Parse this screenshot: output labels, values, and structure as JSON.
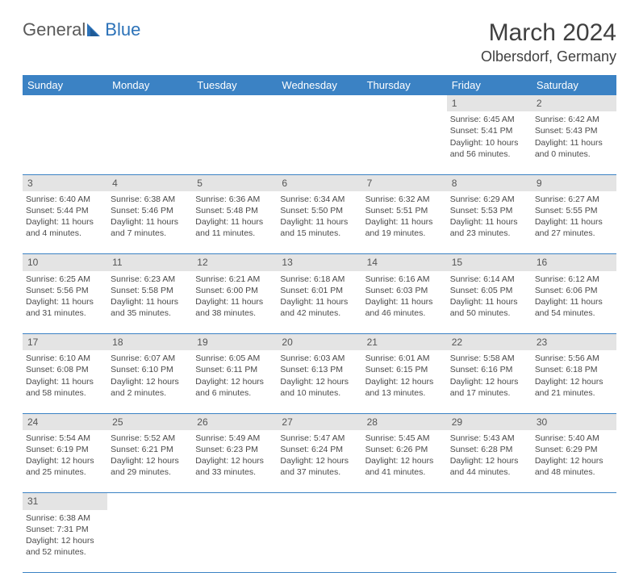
{
  "brand": {
    "part1": "General",
    "part2": "Blue"
  },
  "title": "March 2024",
  "location": "Olbersdorf, Germany",
  "colors": {
    "header_bg": "#3b82c4",
    "header_text": "#ffffff",
    "daynum_bg": "#e4e4e4",
    "cell_border": "#3b82c4",
    "body_text": "#4a4a4a",
    "logo_gray": "#5a5a5a",
    "logo_blue": "#2c72b8"
  },
  "day_headers": [
    "Sunday",
    "Monday",
    "Tuesday",
    "Wednesday",
    "Thursday",
    "Friday",
    "Saturday"
  ],
  "weeks": [
    [
      null,
      null,
      null,
      null,
      null,
      {
        "n": "1",
        "sr": "6:45 AM",
        "ss": "5:41 PM",
        "dl": "10 hours and 56 minutes."
      },
      {
        "n": "2",
        "sr": "6:42 AM",
        "ss": "5:43 PM",
        "dl": "11 hours and 0 minutes."
      }
    ],
    [
      {
        "n": "3",
        "sr": "6:40 AM",
        "ss": "5:44 PM",
        "dl": "11 hours and 4 minutes."
      },
      {
        "n": "4",
        "sr": "6:38 AM",
        "ss": "5:46 PM",
        "dl": "11 hours and 7 minutes."
      },
      {
        "n": "5",
        "sr": "6:36 AM",
        "ss": "5:48 PM",
        "dl": "11 hours and 11 minutes."
      },
      {
        "n": "6",
        "sr": "6:34 AM",
        "ss": "5:50 PM",
        "dl": "11 hours and 15 minutes."
      },
      {
        "n": "7",
        "sr": "6:32 AM",
        "ss": "5:51 PM",
        "dl": "11 hours and 19 minutes."
      },
      {
        "n": "8",
        "sr": "6:29 AM",
        "ss": "5:53 PM",
        "dl": "11 hours and 23 minutes."
      },
      {
        "n": "9",
        "sr": "6:27 AM",
        "ss": "5:55 PM",
        "dl": "11 hours and 27 minutes."
      }
    ],
    [
      {
        "n": "10",
        "sr": "6:25 AM",
        "ss": "5:56 PM",
        "dl": "11 hours and 31 minutes."
      },
      {
        "n": "11",
        "sr": "6:23 AM",
        "ss": "5:58 PM",
        "dl": "11 hours and 35 minutes."
      },
      {
        "n": "12",
        "sr": "6:21 AM",
        "ss": "6:00 PM",
        "dl": "11 hours and 38 minutes."
      },
      {
        "n": "13",
        "sr": "6:18 AM",
        "ss": "6:01 PM",
        "dl": "11 hours and 42 minutes."
      },
      {
        "n": "14",
        "sr": "6:16 AM",
        "ss": "6:03 PM",
        "dl": "11 hours and 46 minutes."
      },
      {
        "n": "15",
        "sr": "6:14 AM",
        "ss": "6:05 PM",
        "dl": "11 hours and 50 minutes."
      },
      {
        "n": "16",
        "sr": "6:12 AM",
        "ss": "6:06 PM",
        "dl": "11 hours and 54 minutes."
      }
    ],
    [
      {
        "n": "17",
        "sr": "6:10 AM",
        "ss": "6:08 PM",
        "dl": "11 hours and 58 minutes."
      },
      {
        "n": "18",
        "sr": "6:07 AM",
        "ss": "6:10 PM",
        "dl": "12 hours and 2 minutes."
      },
      {
        "n": "19",
        "sr": "6:05 AM",
        "ss": "6:11 PM",
        "dl": "12 hours and 6 minutes."
      },
      {
        "n": "20",
        "sr": "6:03 AM",
        "ss": "6:13 PM",
        "dl": "12 hours and 10 minutes."
      },
      {
        "n": "21",
        "sr": "6:01 AM",
        "ss": "6:15 PM",
        "dl": "12 hours and 13 minutes."
      },
      {
        "n": "22",
        "sr": "5:58 AM",
        "ss": "6:16 PM",
        "dl": "12 hours and 17 minutes."
      },
      {
        "n": "23",
        "sr": "5:56 AM",
        "ss": "6:18 PM",
        "dl": "12 hours and 21 minutes."
      }
    ],
    [
      {
        "n": "24",
        "sr": "5:54 AM",
        "ss": "6:19 PM",
        "dl": "12 hours and 25 minutes."
      },
      {
        "n": "25",
        "sr": "5:52 AM",
        "ss": "6:21 PM",
        "dl": "12 hours and 29 minutes."
      },
      {
        "n": "26",
        "sr": "5:49 AM",
        "ss": "6:23 PM",
        "dl": "12 hours and 33 minutes."
      },
      {
        "n": "27",
        "sr": "5:47 AM",
        "ss": "6:24 PM",
        "dl": "12 hours and 37 minutes."
      },
      {
        "n": "28",
        "sr": "5:45 AM",
        "ss": "6:26 PM",
        "dl": "12 hours and 41 minutes."
      },
      {
        "n": "29",
        "sr": "5:43 AM",
        "ss": "6:28 PM",
        "dl": "12 hours and 44 minutes."
      },
      {
        "n": "30",
        "sr": "5:40 AM",
        "ss": "6:29 PM",
        "dl": "12 hours and 48 minutes."
      }
    ],
    [
      {
        "n": "31",
        "sr": "6:38 AM",
        "ss": "7:31 PM",
        "dl": "12 hours and 52 minutes."
      },
      null,
      null,
      null,
      null,
      null,
      null
    ]
  ],
  "labels": {
    "sunrise": "Sunrise:",
    "sunset": "Sunset:",
    "daylight": "Daylight:"
  }
}
